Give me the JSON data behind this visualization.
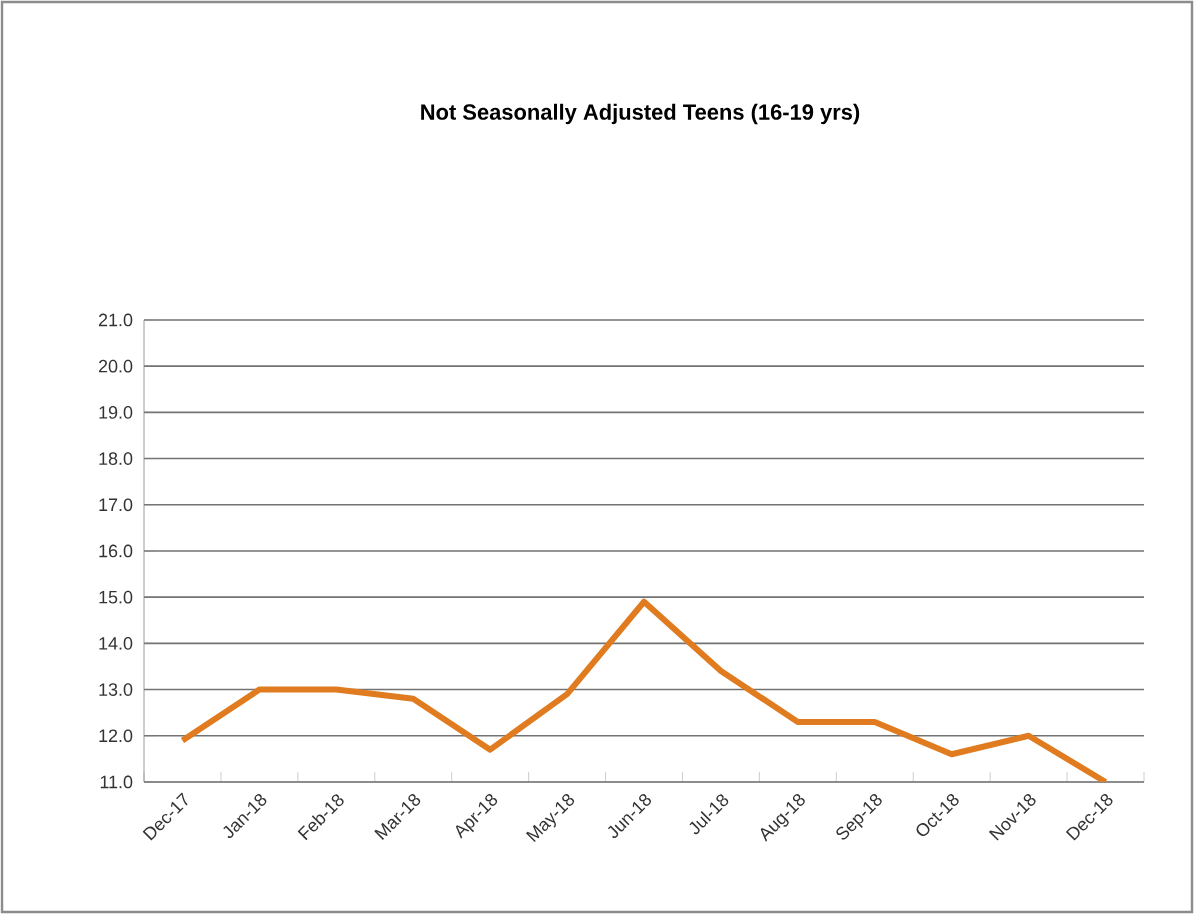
{
  "chart_data": {
    "type": "line",
    "title": "Not Seasonally Adjusted Teens (16-19 yrs)",
    "categories": [
      "Dec-17",
      "Jan-18",
      "Feb-18",
      "Mar-18",
      "Apr-18",
      "May-18",
      "Jun-18",
      "Jul-18",
      "Aug-18",
      "Sep-18",
      "Oct-18",
      "Nov-18",
      "Dec-18"
    ],
    "series": [
      {
        "color": "#e07b20",
        "values": [
          11.9,
          13.0,
          13.0,
          12.8,
          11.7,
          12.9,
          14.9,
          13.4,
          12.3,
          12.3,
          11.6,
          12.0,
          11.0
        ]
      }
    ],
    "ylim": [
      11,
      21
    ],
    "yticks": [
      {
        "value": 11,
        "label": "11.0"
      },
      {
        "value": 12,
        "label": "12.0"
      },
      {
        "value": 13,
        "label": "13.0"
      },
      {
        "value": 14,
        "label": "14.0"
      },
      {
        "value": 15,
        "label": "15.0"
      },
      {
        "value": 16,
        "label": "16.0"
      },
      {
        "value": 17,
        "label": "17.0"
      },
      {
        "value": 18,
        "label": "18.0"
      },
      {
        "value": 19,
        "label": "19.0"
      },
      {
        "value": 20,
        "label": "20.0"
      },
      {
        "value": 21,
        "label": "21.0"
      }
    ],
    "grid": "y",
    "marker": "none",
    "line_style": "solid"
  }
}
